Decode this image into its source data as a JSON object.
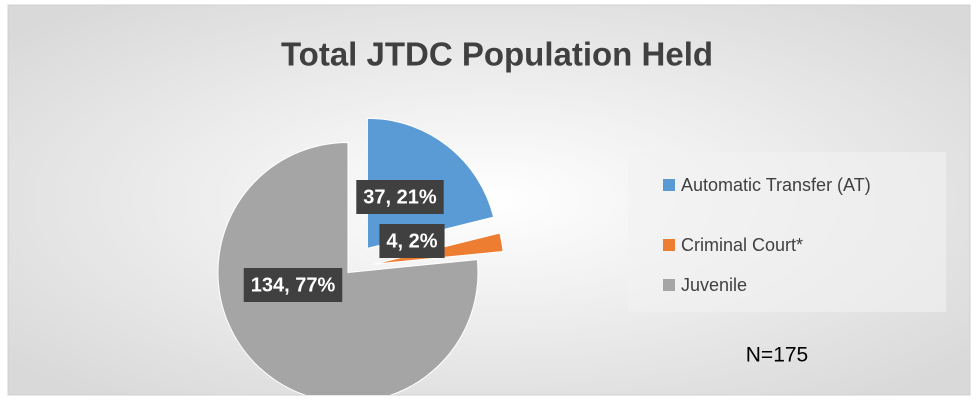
{
  "chart_data": {
    "type": "pie",
    "title": "Total JTDC Population Held",
    "categories": [
      "Automatic Transfer (AT)",
      "Criminal Court*",
      "Juvenile"
    ],
    "values": [
      37,
      4,
      134
    ],
    "value_labels": [
      "37, 21%",
      "4, 2%",
      "134, 77%"
    ],
    "colors": [
      "#5b9bd5",
      "#ed7d31",
      "#a5a5a5"
    ],
    "legend": "right",
    "annotation": "N=175"
  }
}
